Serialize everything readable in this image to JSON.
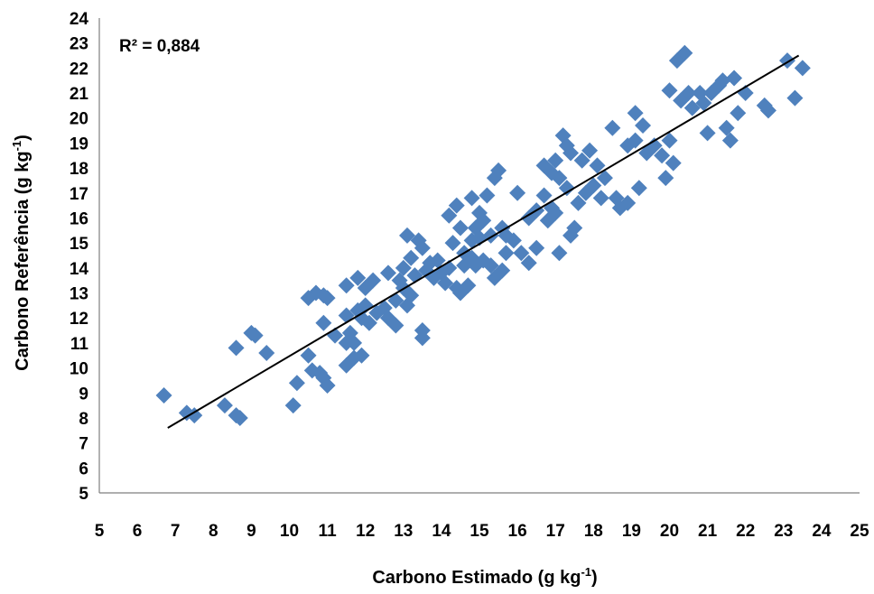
{
  "chart_data": {
    "type": "scatter",
    "xlabel": "Carbono Estimado (g kg",
    "xlabel_sup": "-1",
    "xlabel_tail": ")",
    "ylabel": "Carbono Referência (g kg",
    "ylabel_sup": "-1",
    "ylabel_tail": ")",
    "annotation": "R² = 0,884",
    "xlim": [
      5,
      25
    ],
    "ylim": [
      5,
      24
    ],
    "xticks": [
      5,
      6,
      7,
      8,
      9,
      10,
      11,
      12,
      13,
      14,
      15,
      16,
      17,
      18,
      19,
      20,
      21,
      22,
      23,
      24,
      25
    ],
    "yticks": [
      5,
      6,
      7,
      8,
      9,
      10,
      11,
      12,
      13,
      14,
      15,
      16,
      17,
      18,
      19,
      20,
      21,
      22,
      23,
      24
    ],
    "grid": false,
    "marker_color": "#4f81bd",
    "trendline": {
      "x": [
        6.8,
        23.4
      ],
      "y": [
        7.6,
        22.5
      ],
      "color": "#000000"
    },
    "points": [
      [
        6.7,
        8.9
      ],
      [
        7.3,
        8.2
      ],
      [
        7.5,
        8.1
      ],
      [
        8.3,
        8.5
      ],
      [
        8.6,
        8.1
      ],
      [
        8.7,
        8.0
      ],
      [
        8.6,
        10.8
      ],
      [
        9.1,
        11.3
      ],
      [
        9.4,
        10.6
      ],
      [
        9.0,
        11.4
      ],
      [
        10.1,
        8.5
      ],
      [
        10.2,
        9.4
      ],
      [
        10.5,
        10.5
      ],
      [
        10.6,
        9.9
      ],
      [
        10.8,
        9.8
      ],
      [
        10.9,
        9.6
      ],
      [
        11.0,
        9.3
      ],
      [
        10.5,
        12.8
      ],
      [
        10.7,
        13.0
      ],
      [
        10.9,
        12.9
      ],
      [
        11.0,
        12.8
      ],
      [
        10.9,
        11.8
      ],
      [
        11.2,
        11.3
      ],
      [
        11.5,
        10.1
      ],
      [
        11.7,
        10.4
      ],
      [
        11.9,
        10.5
      ],
      [
        11.5,
        11.0
      ],
      [
        11.6,
        11.4
      ],
      [
        11.7,
        11.0
      ],
      [
        11.5,
        12.1
      ],
      [
        11.8,
        12.3
      ],
      [
        11.9,
        12.0
      ],
      [
        12.1,
        11.8
      ],
      [
        11.5,
        13.3
      ],
      [
        11.8,
        13.6
      ],
      [
        12.0,
        13.2
      ],
      [
        12.2,
        13.5
      ],
      [
        12.0,
        12.5
      ],
      [
        12.3,
        12.2
      ],
      [
        12.5,
        12.4
      ],
      [
        12.6,
        12.0
      ],
      [
        12.8,
        11.7
      ],
      [
        12.6,
        13.8
      ],
      [
        12.9,
        13.5
      ],
      [
        13.0,
        13.2
      ],
      [
        12.8,
        12.7
      ],
      [
        13.1,
        12.5
      ],
      [
        13.2,
        12.9
      ],
      [
        13.0,
        14.0
      ],
      [
        13.2,
        14.4
      ],
      [
        13.1,
        15.3
      ],
      [
        13.4,
        15.1
      ],
      [
        13.5,
        14.8
      ],
      [
        13.5,
        11.5
      ],
      [
        13.5,
        11.2
      ],
      [
        13.3,
        13.7
      ],
      [
        13.6,
        13.9
      ],
      [
        13.8,
        13.6
      ],
      [
        13.7,
        14.2
      ],
      [
        13.9,
        14.3
      ],
      [
        14.0,
        13.8
      ],
      [
        14.1,
        13.4
      ],
      [
        14.2,
        14.0
      ],
      [
        14.2,
        16.1
      ],
      [
        14.4,
        16.5
      ],
      [
        14.3,
        15.0
      ],
      [
        14.5,
        15.6
      ],
      [
        14.4,
        13.2
      ],
      [
        14.5,
        13.0
      ],
      [
        14.7,
        13.3
      ],
      [
        14.6,
        14.1
      ],
      [
        14.8,
        14.4
      ],
      [
        14.6,
        14.6
      ],
      [
        14.9,
        14.1
      ],
      [
        14.8,
        15.1
      ],
      [
        14.9,
        15.6
      ],
      [
        15.0,
        15.2
      ],
      [
        15.1,
        15.9
      ],
      [
        14.8,
        16.8
      ],
      [
        15.0,
        16.2
      ],
      [
        15.2,
        16.9
      ],
      [
        15.4,
        17.6
      ],
      [
        15.5,
        17.9
      ],
      [
        15.3,
        15.3
      ],
      [
        15.6,
        15.6
      ],
      [
        15.1,
        14.3
      ],
      [
        15.3,
        14.1
      ],
      [
        15.4,
        13.6
      ],
      [
        15.6,
        13.9
      ],
      [
        15.7,
        14.6
      ],
      [
        15.9,
        15.1
      ],
      [
        15.7,
        15.3
      ],
      [
        16.0,
        17.0
      ],
      [
        16.1,
        14.6
      ],
      [
        16.3,
        14.2
      ],
      [
        16.5,
        14.8
      ],
      [
        16.3,
        16.0
      ],
      [
        16.5,
        16.3
      ],
      [
        16.7,
        16.9
      ],
      [
        16.9,
        16.4
      ],
      [
        16.8,
        15.9
      ],
      [
        17.0,
        16.2
      ],
      [
        16.7,
        18.1
      ],
      [
        16.9,
        17.8
      ],
      [
        17.0,
        18.3
      ],
      [
        17.2,
        19.3
      ],
      [
        17.3,
        18.9
      ],
      [
        17.4,
        18.6
      ],
      [
        17.1,
        17.6
      ],
      [
        17.3,
        17.2
      ],
      [
        17.1,
        14.6
      ],
      [
        17.4,
        15.3
      ],
      [
        17.5,
        15.6
      ],
      [
        17.6,
        16.6
      ],
      [
        17.8,
        17.0
      ],
      [
        17.7,
        18.3
      ],
      [
        17.9,
        18.7
      ],
      [
        18.1,
        18.1
      ],
      [
        18.0,
        17.3
      ],
      [
        18.2,
        16.8
      ],
      [
        18.3,
        17.6
      ],
      [
        18.5,
        19.6
      ],
      [
        18.6,
        16.8
      ],
      [
        18.7,
        16.4
      ],
      [
        18.9,
        16.6
      ],
      [
        18.9,
        18.9
      ],
      [
        19.1,
        19.1
      ],
      [
        19.1,
        20.2
      ],
      [
        19.3,
        19.7
      ],
      [
        19.2,
        17.2
      ],
      [
        19.4,
        18.6
      ],
      [
        19.6,
        18.9
      ],
      [
        19.8,
        18.5
      ],
      [
        20.0,
        19.1
      ],
      [
        19.9,
        17.6
      ],
      [
        20.1,
        18.2
      ],
      [
        20.0,
        21.1
      ],
      [
        20.2,
        22.3
      ],
      [
        20.4,
        22.6
      ],
      [
        20.5,
        21.0
      ],
      [
        20.3,
        20.7
      ],
      [
        20.6,
        20.4
      ],
      [
        20.8,
        21.0
      ],
      [
        20.9,
        20.6
      ],
      [
        21.0,
        19.4
      ],
      [
        21.1,
        21.0
      ],
      [
        21.3,
        21.3
      ],
      [
        21.4,
        21.5
      ],
      [
        21.5,
        19.6
      ],
      [
        21.6,
        19.1
      ],
      [
        21.7,
        21.6
      ],
      [
        21.8,
        20.2
      ],
      [
        22.0,
        21.0
      ],
      [
        22.5,
        20.5
      ],
      [
        22.6,
        20.3
      ],
      [
        23.1,
        22.3
      ],
      [
        23.3,
        20.8
      ],
      [
        23.5,
        22.0
      ]
    ]
  }
}
